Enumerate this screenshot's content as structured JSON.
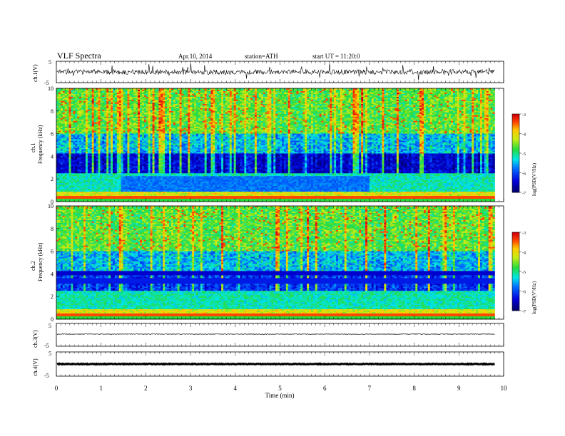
{
  "header": {
    "title": "VLF Spectra",
    "date": "Apr.10, 2014",
    "station": "station=ATH",
    "start": "start  UT =   11:20:0"
  },
  "chart_data": [
    {
      "type": "line",
      "panel": "ch1",
      "ylabel": "ch.1(V)",
      "ylim": [
        -5,
        5
      ],
      "yticks": [
        "5",
        "-5"
      ],
      "description_seed": 11,
      "amplitude": 1.2,
      "style": "noisy"
    },
    {
      "type": "heatmap",
      "panel": "ch1-spectrum",
      "ylabel_lines": [
        "ch.1",
        "Frequency (kHz)"
      ],
      "ylim": [
        0,
        10
      ],
      "yticks": [
        "0",
        "2",
        "4",
        "6",
        "8",
        "10"
      ],
      "seed": 23,
      "colorbar": {
        "label": "log(PSD(V²/Hz)",
        "ticks": [
          "-3",
          "-4",
          "-5",
          "-6",
          "-7"
        ],
        "range": [
          -7,
          -3
        ]
      }
    },
    {
      "type": "heatmap",
      "panel": "ch2-spectrum",
      "ylabel_lines": [
        "ch.2",
        "Frequency (kHz)"
      ],
      "ylim": [
        0,
        10
      ],
      "yticks": [
        "0",
        "2",
        "4",
        "6",
        "8",
        "10"
      ],
      "seed": 57,
      "colorbar": {
        "label": "log(PSD(V²/Hz)",
        "ticks": [
          "-3",
          "-4",
          "-5",
          "-6",
          "-7"
        ],
        "range": [
          -7,
          -3
        ]
      }
    },
    {
      "type": "line",
      "panel": "ch3",
      "ylabel": "ch.3(V)",
      "ylim": [
        -5,
        5
      ],
      "yticks": [
        "5",
        "-5"
      ],
      "style": "flat"
    },
    {
      "type": "line",
      "panel": "ch4",
      "ylabel": "ch.4(V)",
      "ylim": [
        -5,
        5
      ],
      "yticks": [
        "5",
        "-5"
      ],
      "style": "thick"
    }
  ],
  "xaxis": {
    "label": "Time (min)",
    "ticks": [
      "0",
      "1",
      "2",
      "3",
      "4",
      "5",
      "6",
      "7",
      "8",
      "9",
      "10"
    ],
    "xlim": [
      0,
      10
    ],
    "data_end": 9.8
  }
}
